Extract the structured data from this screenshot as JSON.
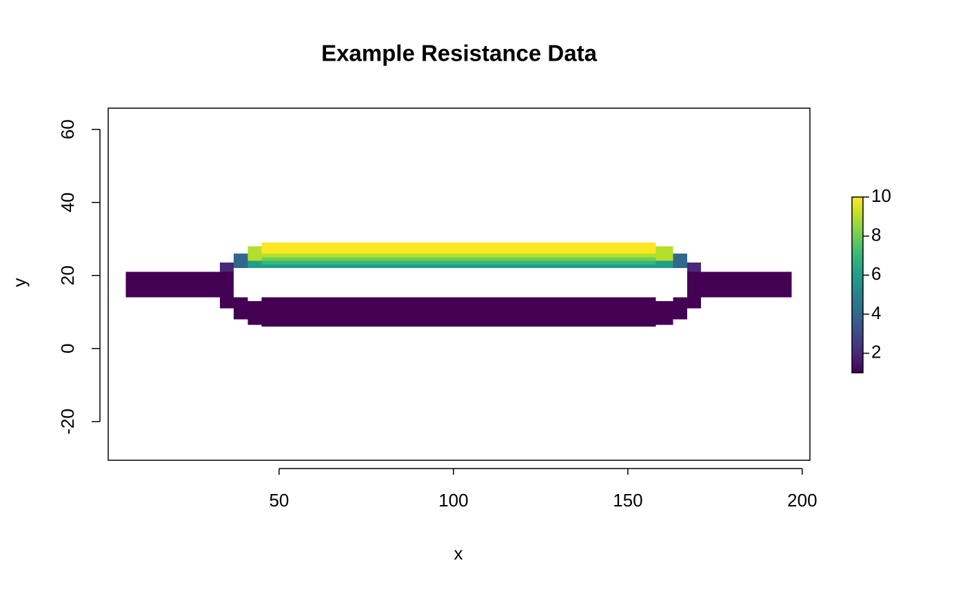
{
  "chart_data": {
    "type": "raster",
    "title": "Example Resistance Data",
    "xlabel": "x",
    "ylabel": "y",
    "xlim": [
      1,
      202.2
    ],
    "ylim": [
      -30.6,
      65.8
    ],
    "xticks": [
      50,
      100,
      150,
      200
    ],
    "yticks": [
      -20,
      0,
      20,
      40,
      60
    ],
    "colormap": "viridis",
    "zlim": [
      1,
      10
    ],
    "zticks": [
      2,
      4,
      6,
      8,
      10
    ],
    "cells": [
      {
        "x": [
          6,
          33
        ],
        "y": [
          14,
          21
        ],
        "value": 1
      },
      {
        "x": [
          171,
          197
        ],
        "y": [
          14,
          21
        ],
        "value": 1
      },
      {
        "x": [
          45,
          158
        ],
        "y": [
          6,
          14
        ],
        "value": 1
      },
      {
        "x": [
          33,
          37
        ],
        "y": [
          11,
          21
        ],
        "value": 1
      },
      {
        "x": [
          37,
          41
        ],
        "y": [
          8,
          14
        ],
        "value": 1
      },
      {
        "x": [
          41,
          45
        ],
        "y": [
          6.5,
          13
        ],
        "value": 1
      },
      {
        "x": [
          167,
          171
        ],
        "y": [
          11,
          21
        ],
        "value": 1
      },
      {
        "x": [
          163,
          167
        ],
        "y": [
          8,
          14
        ],
        "value": 1
      },
      {
        "x": [
          158,
          163
        ],
        "y": [
          6.5,
          13
        ],
        "value": 1
      },
      {
        "x": [
          45,
          158
        ],
        "y": [
          22,
          23
        ],
        "value": 6
      },
      {
        "x": [
          45,
          158
        ],
        "y": [
          23,
          24
        ],
        "value": 7
      },
      {
        "x": [
          45,
          158
        ],
        "y": [
          24,
          25
        ],
        "value": 8
      },
      {
        "x": [
          45,
          158
        ],
        "y": [
          25,
          26
        ],
        "value": 9
      },
      {
        "x": [
          45,
          158
        ],
        "y": [
          26,
          29
        ],
        "value": 10
      },
      {
        "x": [
          33,
          37
        ],
        "y": [
          21,
          23.5
        ],
        "value": 2
      },
      {
        "x": [
          37,
          41
        ],
        "y": [
          22,
          26
        ],
        "value": 4
      },
      {
        "x": [
          41,
          45
        ],
        "y": [
          22,
          24
        ],
        "value": 6
      },
      {
        "x": [
          41,
          45
        ],
        "y": [
          24,
          28
        ],
        "value": 9
      },
      {
        "x": [
          167,
          171
        ],
        "y": [
          21,
          23.5
        ],
        "value": 2
      },
      {
        "x": [
          163,
          167
        ],
        "y": [
          22,
          26
        ],
        "value": 4
      },
      {
        "x": [
          158,
          163
        ],
        "y": [
          22,
          24
        ],
        "value": 6
      },
      {
        "x": [
          158,
          163
        ],
        "y": [
          24,
          28
        ],
        "value": 9
      }
    ]
  }
}
